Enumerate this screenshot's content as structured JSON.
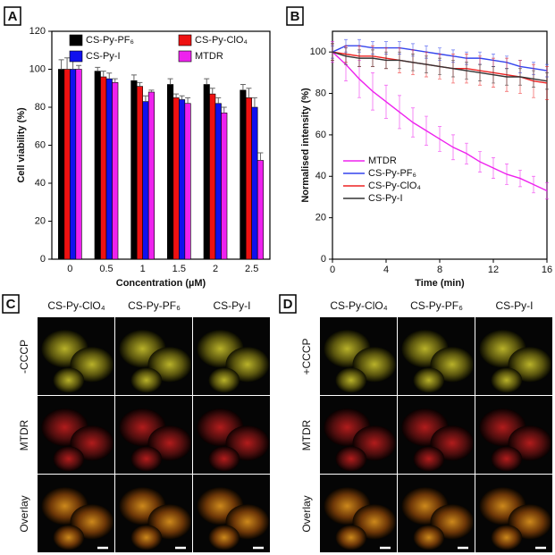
{
  "chart_data": [
    {
      "type": "bar",
      "letter": "A",
      "xlabel": "Concentration (µM)",
      "ylabel": "Cell viability (%)",
      "categories": [
        "0",
        "0.5",
        "1",
        "1.5",
        "2",
        "2.5"
      ],
      "series": [
        {
          "name": "CS-Py-PF₆",
          "color": "#000000",
          "values": [
            100,
            99,
            94,
            92,
            92,
            89
          ],
          "errors": [
            5,
            2,
            3,
            3,
            3,
            3
          ]
        },
        {
          "name": "CS-Py-ClO₄",
          "color": "#ee1111",
          "values": [
            100,
            96,
            91,
            85,
            87,
            85
          ],
          "errors": [
            6,
            3,
            2,
            2,
            3,
            5
          ]
        },
        {
          "name": "CS-Py-I",
          "color": "#1010ee",
          "values": [
            100,
            95,
            83,
            84,
            82,
            80
          ],
          "errors": [
            5,
            3,
            3,
            2,
            3,
            5
          ]
        },
        {
          "name": "MTDR",
          "color": "#ee22ee",
          "values": [
            100,
            93,
            88,
            82,
            77,
            52
          ],
          "errors": [
            2,
            2,
            1,
            3,
            3,
            4
          ]
        }
      ],
      "ylim": [
        0,
        120
      ],
      "yticks": [
        0,
        20,
        40,
        60,
        80,
        100,
        120
      ],
      "legend": "top"
    },
    {
      "type": "line",
      "letter": "B",
      "xlabel": "Time (min)",
      "ylabel": "Normalised intensity (%)",
      "x": [
        0,
        1,
        2,
        3,
        4,
        5,
        6,
        7,
        8,
        9,
        10,
        11,
        12,
        13,
        14,
        15,
        16
      ],
      "series": [
        {
          "name": "MTDR",
          "color": "#ee22ee",
          "values": [
            100,
            94,
            87,
            81,
            76,
            71,
            66,
            62,
            58,
            54,
            51,
            47,
            44,
            41,
            39,
            36,
            33
          ],
          "errors": [
            5,
            8,
            9,
            9,
            8,
            8,
            7,
            7,
            6,
            6,
            5,
            5,
            5,
            5,
            4,
            4,
            4
          ]
        },
        {
          "name": "CS-Py-PF₆",
          "color": "#3344ee",
          "values": [
            100,
            103,
            103,
            102,
            102,
            102,
            101,
            100,
            99,
            98,
            97,
            97,
            96,
            95,
            93,
            92,
            91
          ],
          "errors": [
            3,
            3,
            3,
            3,
            3,
            3,
            3,
            3,
            3,
            3,
            3,
            3,
            3,
            3,
            3,
            3,
            3
          ]
        },
        {
          "name": "CS-Py-ClO₄",
          "color": "#ee2222",
          "values": [
            100,
            99,
            98,
            98,
            97,
            96,
            95,
            94,
            93,
            92,
            92,
            91,
            90,
            89,
            88,
            86,
            85
          ],
          "errors": [
            4,
            4,
            5,
            5,
            5,
            6,
            6,
            6,
            6,
            7,
            7,
            7,
            7,
            8,
            8,
            8,
            8
          ]
        },
        {
          "name": "CS-Py-I",
          "color": "#333333",
          "values": [
            100,
            98,
            97,
            97,
            96,
            96,
            95,
            94,
            93,
            92,
            91,
            90,
            89,
            88,
            88,
            87,
            86
          ],
          "errors": [
            4,
            4,
            4,
            4,
            4,
            4,
            4,
            4,
            4,
            4,
            4,
            4,
            4,
            4,
            4,
            4,
            4
          ]
        }
      ],
      "xlim": [
        0,
        16
      ],
      "xticks": [
        0,
        4,
        8,
        12,
        16
      ],
      "ylim": [
        0,
        110
      ],
      "yticks": [
        0,
        20,
        40,
        60,
        80,
        100
      ],
      "legend": "lower-left"
    }
  ],
  "panels": [
    {
      "letter": "C",
      "columns": [
        "CS-Py-ClO₄",
        "CS-Py-PF₆",
        "CS-Py-I"
      ],
      "rows": [
        "-CCCP",
        "MTDR",
        "Overlay"
      ]
    },
    {
      "letter": "D",
      "columns": [
        "CS-Py-ClO₄",
        "CS-Py-PF₆",
        "CS-Py-I"
      ],
      "rows": [
        "+CCCP",
        "MTDR",
        "Overlay"
      ]
    }
  ]
}
